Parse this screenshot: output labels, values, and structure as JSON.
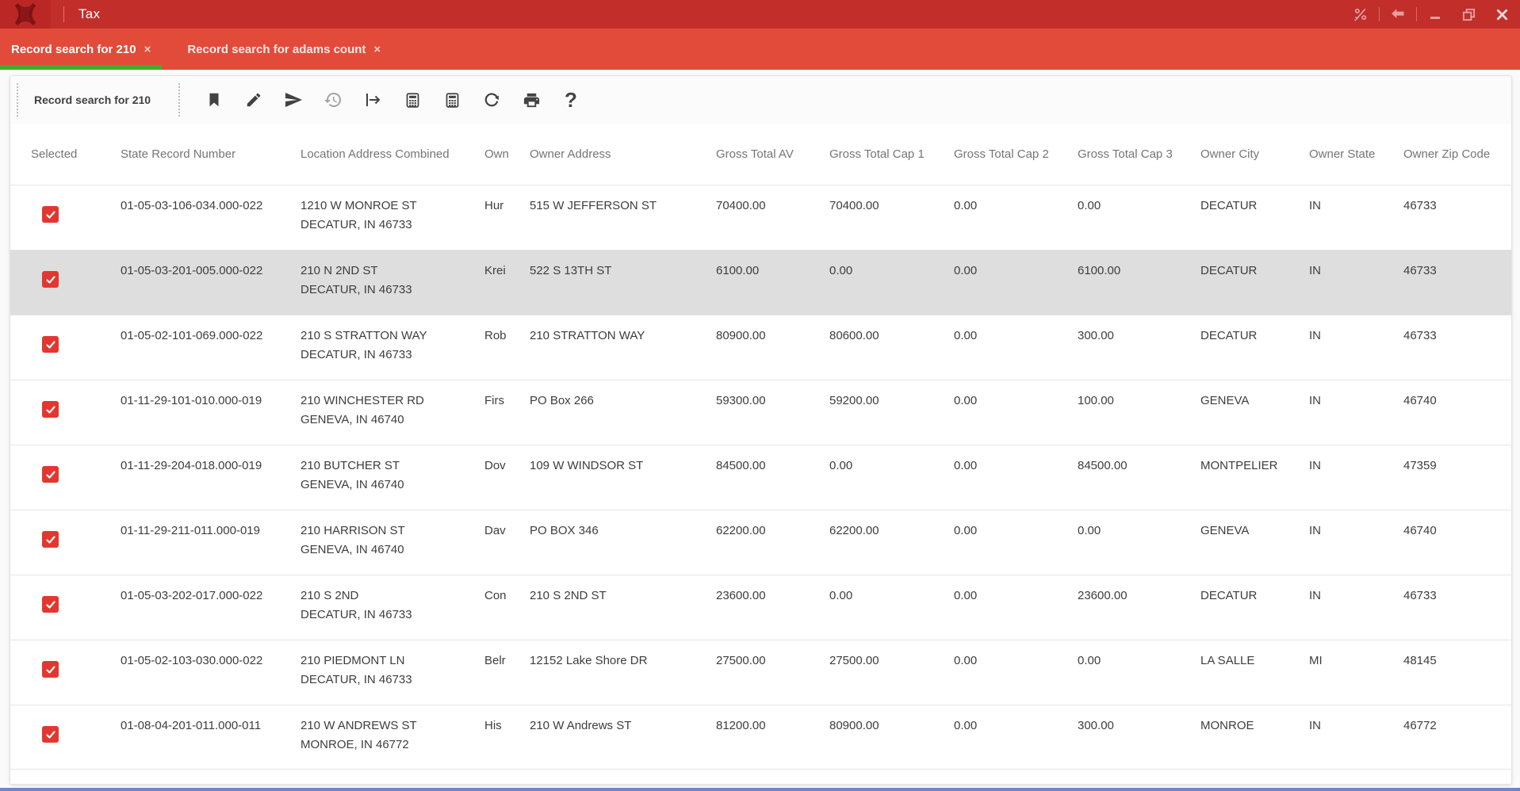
{
  "window": {
    "title": "Tax",
    "controls": {
      "formula_label": "formula-toggle",
      "back_label": "back",
      "minimize_label": "minimize",
      "restore_label": "restore",
      "close_label": "close"
    }
  },
  "tabs": [
    {
      "label": "Record search for 210",
      "close_glyph": "×",
      "active": true
    },
    {
      "label": "Record search for adams count",
      "close_glyph": "×",
      "active": false
    }
  ],
  "toolbar": {
    "title": "Record search for 210",
    "help_glyph": "?",
    "buttons": [
      "bookmark",
      "edit",
      "send",
      "history",
      "export",
      "calculate",
      "calculate-alt",
      "refresh",
      "print",
      "help"
    ]
  },
  "table": {
    "columns": [
      "Selected",
      "State Record Number",
      "Location Address Combined",
      "Own",
      "Owner Address",
      "Gross Total AV",
      "Gross Total Cap 1",
      "Gross Total Cap 2",
      "Gross Total Cap 3",
      "Owner City",
      "Owner State",
      "Owner Zip Code"
    ],
    "rows": [
      {
        "selected": true,
        "highlighted": false,
        "srn": "01-05-03-106-034.000-022",
        "loc1": "1210 W MONROE ST",
        "loc2": "DECATUR, IN 46733",
        "own": "Hur",
        "owner_address": "515 W JEFFERSON ST",
        "av": "70400.00",
        "cap1": "70400.00",
        "cap2": "0.00",
        "cap3": "0.00",
        "city": "DECATUR",
        "state": "IN",
        "zip": "46733"
      },
      {
        "selected": true,
        "highlighted": true,
        "srn": "01-05-03-201-005.000-022",
        "loc1": "210 N 2ND ST",
        "loc2": "DECATUR, IN 46733",
        "own": "Krei",
        "owner_address": "522 S 13TH ST",
        "av": "6100.00",
        "cap1": "0.00",
        "cap2": "0.00",
        "cap3": "6100.00",
        "city": "DECATUR",
        "state": "IN",
        "zip": "46733"
      },
      {
        "selected": true,
        "highlighted": false,
        "srn": "01-05-02-101-069.000-022",
        "loc1": "210 S STRATTON WAY",
        "loc2": "DECATUR, IN 46733",
        "own": "Rob",
        "owner_address": "210 STRATTON WAY",
        "av": "80900.00",
        "cap1": "80600.00",
        "cap2": "0.00",
        "cap3": "300.00",
        "city": "DECATUR",
        "state": "IN",
        "zip": "46733"
      },
      {
        "selected": true,
        "highlighted": false,
        "srn": "01-11-29-101-010.000-019",
        "loc1": "210 WINCHESTER RD",
        "loc2": "GENEVA, IN 46740",
        "own": "Firs",
        "owner_address": "PO Box 266",
        "av": "59300.00",
        "cap1": "59200.00",
        "cap2": "0.00",
        "cap3": "100.00",
        "city": "GENEVA",
        "state": "IN",
        "zip": "46740"
      },
      {
        "selected": true,
        "highlighted": false,
        "srn": "01-11-29-204-018.000-019",
        "loc1": "210 BUTCHER ST",
        "loc2": "GENEVA, IN 46740",
        "own": "Dov",
        "owner_address": "109 W WINDSOR ST",
        "av": "84500.00",
        "cap1": "0.00",
        "cap2": "0.00",
        "cap3": "84500.00",
        "city": "MONTPELIER",
        "state": "IN",
        "zip": "47359"
      },
      {
        "selected": true,
        "highlighted": false,
        "srn": "01-11-29-211-011.000-019",
        "loc1": "210 HARRISON ST",
        "loc2": "GENEVA, IN 46740",
        "own": "Dav",
        "owner_address": "PO BOX 346",
        "av": "62200.00",
        "cap1": "62200.00",
        "cap2": "0.00",
        "cap3": "0.00",
        "city": "GENEVA",
        "state": "IN",
        "zip": "46740"
      },
      {
        "selected": true,
        "highlighted": false,
        "srn": "01-05-03-202-017.000-022",
        "loc1": "210 S 2ND",
        "loc2": "DECATUR, IN 46733",
        "own": "Con",
        "owner_address": "210 S 2ND ST",
        "av": "23600.00",
        "cap1": "0.00",
        "cap2": "0.00",
        "cap3": "23600.00",
        "city": "DECATUR",
        "state": "IN",
        "zip": "46733"
      },
      {
        "selected": true,
        "highlighted": false,
        "srn": "01-05-02-103-030.000-022",
        "loc1": "210 PIEDMONT LN",
        "loc2": "DECATUR, IN 46733",
        "own": "Belr",
        "owner_address": "12152 Lake Shore DR",
        "av": "27500.00",
        "cap1": "27500.00",
        "cap2": "0.00",
        "cap3": "0.00",
        "city": "LA SALLE",
        "state": "MI",
        "zip": "48145"
      },
      {
        "selected": true,
        "highlighted": false,
        "srn": "01-08-04-201-011.000-011",
        "loc1": "210 W ANDREWS ST",
        "loc2": "MONROE, IN 46772",
        "own": "His",
        "owner_address": "210 W Andrews ST",
        "av": "81200.00",
        "cap1": "80900.00",
        "cap2": "0.00",
        "cap3": "300.00",
        "city": "MONROE",
        "state": "IN",
        "zip": "46772"
      }
    ]
  },
  "colors": {
    "titlebar": "#c22e2a",
    "tabbar": "#e24b3a",
    "active_tab_underline": "#3fae2a",
    "checkbox": "#e23730",
    "row_highlight": "#dedede",
    "header_text": "#757575",
    "cell_text": "#3d3d3d"
  }
}
